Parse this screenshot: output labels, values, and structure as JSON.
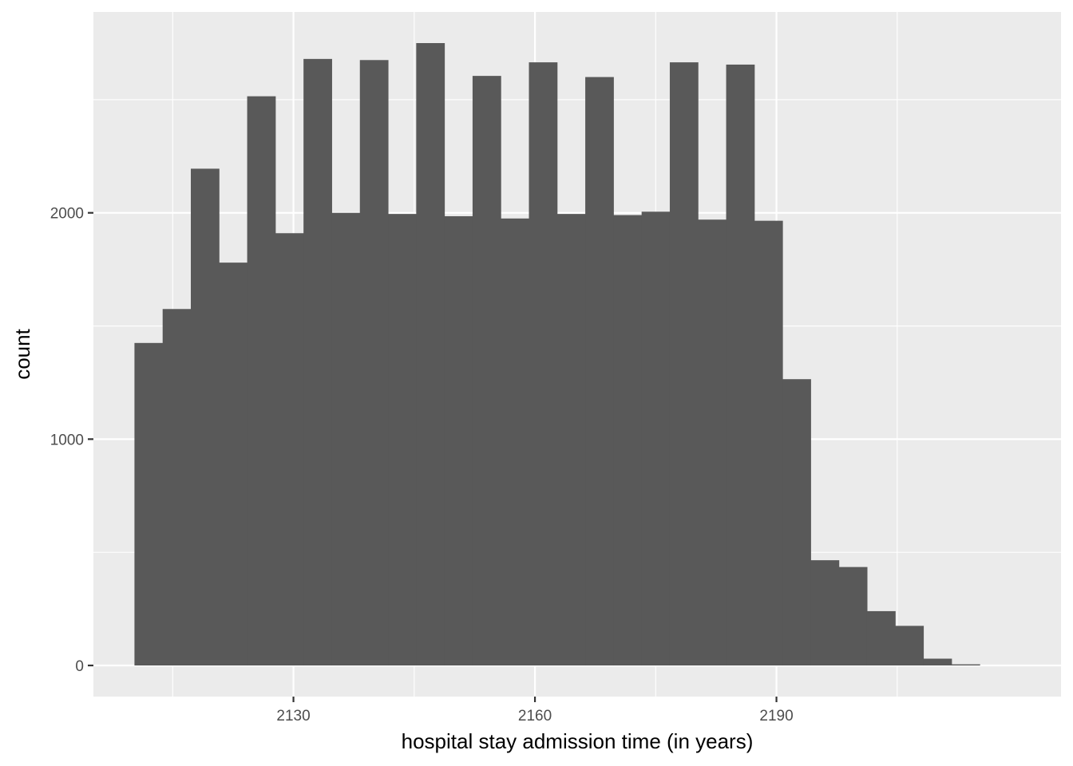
{
  "chart_data": {
    "type": "bar",
    "subtype": "histogram",
    "title": "",
    "xlabel": "hospital stay admission time (in years)",
    "ylabel": "count",
    "bin_width": 3.5,
    "bins": [
      {
        "x": 2112.0,
        "count": 1425
      },
      {
        "x": 2115.5,
        "count": 1575
      },
      {
        "x": 2119.0,
        "count": 2195
      },
      {
        "x": 2122.5,
        "count": 1780
      },
      {
        "x": 2126.0,
        "count": 2515
      },
      {
        "x": 2129.5,
        "count": 1910
      },
      {
        "x": 2133.0,
        "count": 2680
      },
      {
        "x": 2136.5,
        "count": 2000
      },
      {
        "x": 2140.0,
        "count": 2675
      },
      {
        "x": 2143.5,
        "count": 1995
      },
      {
        "x": 2147.0,
        "count": 2750
      },
      {
        "x": 2150.5,
        "count": 1985
      },
      {
        "x": 2154.0,
        "count": 2605
      },
      {
        "x": 2157.5,
        "count": 1975
      },
      {
        "x": 2161.0,
        "count": 2665
      },
      {
        "x": 2164.5,
        "count": 1995
      },
      {
        "x": 2168.0,
        "count": 2600
      },
      {
        "x": 2171.5,
        "count": 1990
      },
      {
        "x": 2175.0,
        "count": 2005
      },
      {
        "x": 2178.5,
        "count": 2665
      },
      {
        "x": 2182.0,
        "count": 1970
      },
      {
        "x": 2185.5,
        "count": 2655
      },
      {
        "x": 2189.0,
        "count": 1965
      },
      {
        "x": 2192.5,
        "count": 1265
      },
      {
        "x": 2196.0,
        "count": 465
      },
      {
        "x": 2199.5,
        "count": 435
      },
      {
        "x": 2203.0,
        "count": 240
      },
      {
        "x": 2206.5,
        "count": 175
      },
      {
        "x": 2210.0,
        "count": 30
      },
      {
        "x": 2213.5,
        "count": 5
      }
    ],
    "x_ticks": [
      "2130",
      "2160",
      "2190"
    ],
    "y_ticks": [
      "0",
      "1000",
      "2000"
    ],
    "xlim": [
      2105.15,
      2225.35
    ],
    "ylim": [
      -137.5,
      2887.5
    ],
    "grid": true,
    "panel_background": "#ebebeb",
    "grid_color": "#ffffff",
    "bar_color": "#595959"
  }
}
